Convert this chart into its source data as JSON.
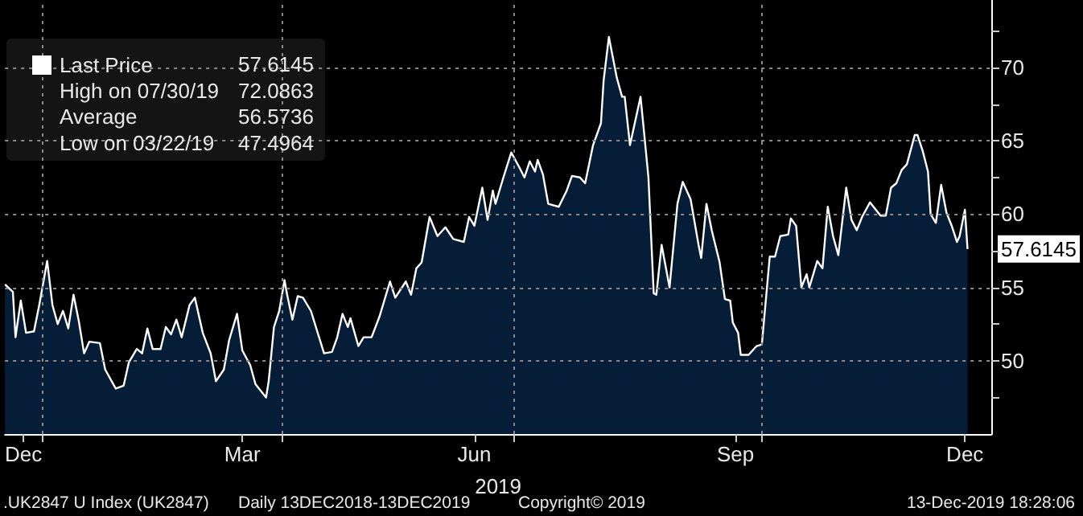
{
  "chart_data": {
    "type": "area",
    "xlabel": "2019",
    "x": [
      "2018-12-13",
      "2018-12-16",
      "2018-12-17",
      "2018-12-19",
      "2018-12-21",
      "2018-12-24",
      "2018-12-26",
      "2018-12-29",
      "2018-12-31",
      "2019-01-02",
      "2019-01-04",
      "2019-01-06",
      "2019-01-08",
      "2019-01-10",
      "2019-01-12",
      "2019-01-14",
      "2019-01-18",
      "2019-01-20",
      "2019-01-24",
      "2019-01-27",
      "2019-01-29",
      "2019-02-01",
      "2019-02-03",
      "2019-02-05",
      "2019-02-07",
      "2019-02-10",
      "2019-02-12",
      "2019-02-14",
      "2019-02-16",
      "2019-02-18",
      "2019-02-21",
      "2019-02-23",
      "2019-02-26",
      "2019-03-01",
      "2019-03-03",
      "2019-03-06",
      "2019-03-08",
      "2019-03-11",
      "2019-03-13",
      "2019-03-16",
      "2019-03-18",
      "2019-03-22",
      "2019-03-23",
      "2019-03-25",
      "2019-03-27",
      "2019-03-29",
      "2019-03-30",
      "2019-04-01",
      "2019-04-03",
      "2019-04-05",
      "2019-04-08",
      "2019-04-13",
      "2019-04-16",
      "2019-04-18",
      "2019-04-20",
      "2019-04-22",
      "2019-04-23",
      "2019-04-26",
      "2019-04-28",
      "2019-05-01",
      "2019-05-04",
      "2019-05-08",
      "2019-05-10",
      "2019-05-14",
      "2019-05-16",
      "2019-05-18",
      "2019-05-20",
      "2019-05-23",
      "2019-05-26",
      "2019-05-29",
      "2019-06-01",
      "2019-06-05",
      "2019-06-07",
      "2019-06-09",
      "2019-06-12",
      "2019-06-14",
      "2019-06-16",
      "2019-06-17",
      "2019-06-20",
      "2019-06-23",
      "2019-06-26",
      "2019-06-28",
      "2019-06-30",
      "2019-07-02",
      "2019-07-03",
      "2019-07-05",
      "2019-07-07",
      "2019-07-11",
      "2019-07-14",
      "2019-07-16",
      "2019-07-19",
      "2019-07-21",
      "2019-07-24",
      "2019-07-27",
      "2019-07-28",
      "2019-07-30",
      "2019-08-02",
      "2019-08-04",
      "2019-08-05",
      "2019-08-07",
      "2019-08-11",
      "2019-08-12",
      "2019-08-14",
      "2019-08-16",
      "2019-08-17",
      "2019-08-19",
      "2019-08-22",
      "2019-08-25",
      "2019-08-27",
      "2019-08-30",
      "2019-09-02",
      "2019-09-03",
      "2019-09-05",
      "2019-09-07",
      "2019-09-10",
      "2019-09-12",
      "2019-09-14",
      "2019-09-15",
      "2019-09-17",
      "2019-09-18",
      "2019-09-21",
      "2019-09-24",
      "2019-09-26",
      "2019-09-29",
      "2019-10-01",
      "2019-10-03",
      "2019-10-06",
      "2019-10-07",
      "2019-10-09",
      "2019-10-11",
      "2019-10-13",
      "2019-10-14",
      "2019-10-17",
      "2019-10-19",
      "2019-10-21",
      "2019-10-23",
      "2019-10-25",
      "2019-10-28",
      "2019-10-30",
      "2019-11-01",
      "2019-11-03",
      "2019-11-06",
      "2019-11-10",
      "2019-11-12",
      "2019-11-14",
      "2019-11-16",
      "2019-11-18",
      "2019-11-20",
      "2019-11-23",
      "2019-11-24",
      "2019-11-26",
      "2019-11-28",
      "2019-11-29",
      "2019-12-01",
      "2019-12-03",
      "2019-12-05",
      "2019-12-07",
      "2019-12-09",
      "2019-12-10",
      "2019-12-12",
      "2019-12-13"
    ],
    "series": [
      {
        "name": "Last Price",
        "color": "#ffffff",
        "values": [
          55.2,
          54.7,
          51.6,
          54.1,
          51.9,
          52.0,
          53.8,
          56.8,
          53.8,
          52.5,
          53.4,
          52.2,
          54.5,
          52.7,
          50.5,
          51.3,
          51.2,
          49.4,
          48.1,
          48.3,
          49.9,
          50.8,
          50.5,
          52.2,
          50.8,
          50.8,
          52.3,
          51.8,
          52.8,
          51.6,
          53.8,
          54.3,
          51.9,
          50.5,
          48.6,
          49.4,
          51.4,
          53.2,
          50.7,
          49.7,
          48.4,
          47.4964,
          48.6,
          52.3,
          53.4,
          55.5,
          54.5,
          52.8,
          54.4,
          54.3,
          53.4,
          50.5,
          50.6,
          51.6,
          53.2,
          52.3,
          52.9,
          51.0,
          51.6,
          51.6,
          53.0,
          55.4,
          54.3,
          55.4,
          54.5,
          56.3,
          56.7,
          59.8,
          58.5,
          59.1,
          58.3,
          58.1,
          59.8,
          59.2,
          61.8,
          59.6,
          61.6,
          60.7,
          62.5,
          64.2,
          63.2,
          62.5,
          63.6,
          62.9,
          63.7,
          62.7,
          60.7,
          60.5,
          61.6,
          62.6,
          62.5,
          62.1,
          64.7,
          66.2,
          69.1,
          72.0863,
          69.3,
          68.0,
          68.0,
          64.7,
          68.0,
          66.2,
          62.5,
          54.6,
          54.5,
          57.9,
          55.0,
          60.7,
          62.2,
          61.0,
          57.9,
          57.0,
          60.7,
          58.9,
          56.7,
          54.2,
          54.1,
          52.6,
          51.9,
          50.4,
          50.4,
          51.0,
          51.1,
          57.1,
          57.1,
          58.5,
          58.6,
          59.7,
          59.2,
          55.0,
          55.9,
          55.0,
          56.8,
          56.3,
          60.5,
          58.5,
          57.2,
          61.8,
          59.6,
          58.9,
          59.8,
          60.8,
          59.9,
          59.9,
          61.8,
          62.1,
          63.0,
          63.4,
          65.4,
          65.4,
          64.3,
          62.9,
          60.0,
          59.4,
          62.0,
          60.1,
          59.2,
          58.1,
          58.5,
          60.3,
          57.6145
        ]
      }
    ],
    "xlim": [
      "2018-12-13",
      "2019-12-22"
    ],
    "xticks": [
      {
        "value": "2018-12-20",
        "label": "Dec"
      },
      {
        "value": "2019-03-13",
        "label": "Mar"
      },
      {
        "value": "2019-06-09",
        "label": "Jun"
      },
      {
        "value": "2019-09-16",
        "label": "Sep"
      },
      {
        "value": "2019-12-12",
        "label": "Dec"
      },
      {
        "value": "2018-12-27",
        "label": null
      },
      {
        "value": "2019-03-28",
        "label": null
      },
      {
        "value": "2019-06-24",
        "label": null
      },
      {
        "value": "2019-09-26",
        "label": null
      }
    ],
    "ylim": [
      45,
      74.6
    ],
    "yticks": [
      50,
      55,
      60,
      65,
      70,
      {
        "value": 47.5,
        "label": null
      },
      {
        "value": 52.5,
        "label": null
      },
      {
        "value": 57.5,
        "label": null
      },
      {
        "value": 62.5,
        "label": null
      },
      {
        "value": 67.5,
        "label": null
      },
      {
        "value": 72.5,
        "label": null
      }
    ],
    "grid": true,
    "legend": "top left",
    "annotations": [
      "57.6145",
      "High on 07/30/19",
      "72.0863",
      "Average",
      "56.5736",
      "Low on 03/22/19",
      "47.4964",
      {
        "text": "57.6145",
        "x": "2019-12-13",
        "y": 57.6145
      },
      ".UK2847 U Index (UK2847)",
      "Daily 13DEC2018-13DEC2019",
      "Copyright© 2019",
      "13-Dec-2019 18:28:06"
    ]
  }
}
